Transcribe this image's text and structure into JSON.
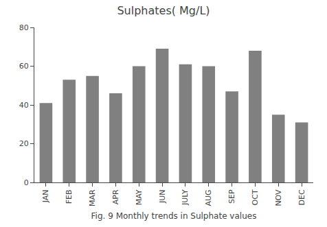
{
  "chart_data": {
    "type": "bar",
    "title": "Sulphates( Mg/L)",
    "caption": "Fig. 9 Monthly trends in Sulphate values",
    "categories": [
      "JAN",
      "FEB",
      "MAR",
      "APR",
      "MAY",
      "JUN",
      "JULY",
      "AUG",
      "SEP",
      "OCT",
      "NOV",
      "DEC"
    ],
    "values": [
      41,
      53,
      55,
      46,
      60,
      69,
      61,
      60,
      47,
      68,
      35,
      31
    ],
    "color": "#808080",
    "ylim": [
      0,
      80
    ],
    "yticks": [
      0,
      20,
      40,
      60,
      80
    ],
    "grid": false
  }
}
